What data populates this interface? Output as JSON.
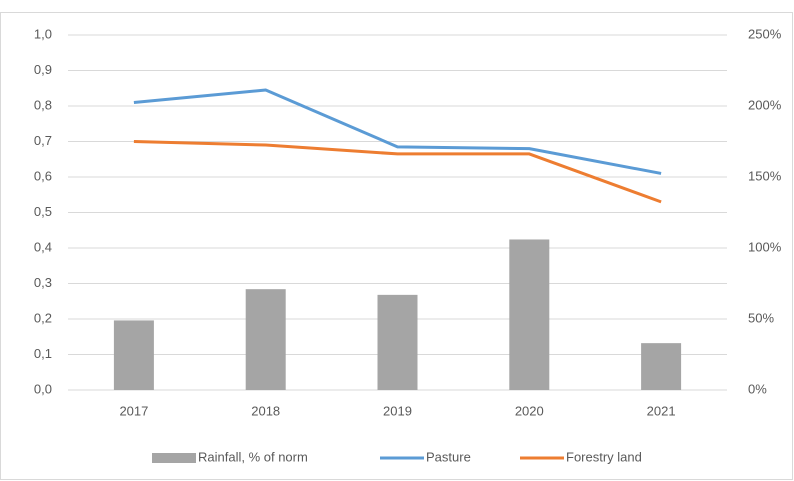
{
  "chart_data": {
    "type": "bar-line",
    "categories": [
      "2017",
      "2018",
      "2019",
      "2020",
      "2021"
    ],
    "series": [
      {
        "name": "Rainfall, % of norm",
        "type": "bar",
        "axis": "y2",
        "color": "#a5a5a5",
        "values": [
          49,
          71,
          67,
          106,
          33
        ]
      },
      {
        "name": "Pasture",
        "type": "line",
        "color": "#5b9bd5",
        "values": [
          0.81,
          0.845,
          0.685,
          0.68,
          0.61
        ]
      },
      {
        "name": "Forestry land",
        "type": "line",
        "color": "#ed7d31",
        "values": [
          0.7,
          0.69,
          0.665,
          0.665,
          0.53
        ]
      }
    ],
    "ylim": [
      0,
      1
    ],
    "yticks": [
      {
        "value": 0,
        "label": "0,0"
      },
      {
        "value": 0.1,
        "label": "0,1"
      },
      {
        "value": 0.2,
        "label": "0,2"
      },
      {
        "value": 0.3,
        "label": "0,3"
      },
      {
        "value": 0.4,
        "label": "0,4"
      },
      {
        "value": 0.5,
        "label": "0,5"
      },
      {
        "value": 0.6,
        "label": "0,6"
      },
      {
        "value": 0.7,
        "label": "0,7"
      },
      {
        "value": 0.8,
        "label": "0,8"
      },
      {
        "value": 0.9,
        "label": "0,9"
      },
      {
        "value": 1,
        "label": "1,0"
      }
    ],
    "y2lim": [
      0,
      250
    ],
    "y2ticks": [
      {
        "value": 0,
        "label": "0%"
      },
      {
        "value": 50,
        "label": "50%"
      },
      {
        "value": 100,
        "label": "100%"
      },
      {
        "value": 150,
        "label": "150%"
      },
      {
        "value": 200,
        "label": "200%"
      },
      {
        "value": 250,
        "label": "250%"
      }
    ],
    "grid": true,
    "legend": "bottom"
  }
}
